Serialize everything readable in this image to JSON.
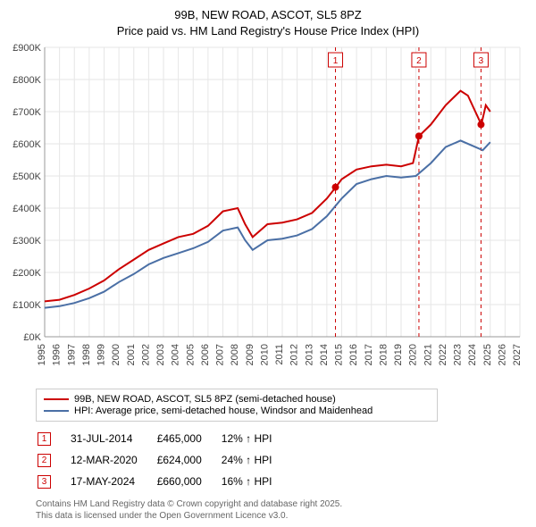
{
  "title_line1": "99B, NEW ROAD, ASCOT, SL5 8PZ",
  "title_line2": "Price paid vs. HM Land Registry's House Price Index (HPI)",
  "chart": {
    "type": "line",
    "background_color": "#ffffff",
    "grid_color": "#e6e6e6",
    "axis_color": "#999999",
    "x_years": [
      1995,
      1996,
      1997,
      1998,
      1999,
      2000,
      2001,
      2002,
      2003,
      2004,
      2005,
      2006,
      2007,
      2008,
      2009,
      2010,
      2011,
      2012,
      2013,
      2014,
      2015,
      2016,
      2017,
      2018,
      2019,
      2020,
      2021,
      2022,
      2023,
      2024,
      2025,
      2026,
      2027
    ],
    "y_ticks": [
      0,
      100,
      200,
      300,
      400,
      500,
      600,
      700,
      800,
      900
    ],
    "y_suffix": "K",
    "y_prefix": "£",
    "ylim": [
      0,
      900
    ],
    "xlim": [
      1995,
      2027
    ],
    "series": [
      {
        "name": "price_paid",
        "color": "#cc0000",
        "width": 2,
        "points": [
          [
            1995,
            110
          ],
          [
            1996,
            115
          ],
          [
            1997,
            130
          ],
          [
            1998,
            150
          ],
          [
            1999,
            175
          ],
          [
            2000,
            210
          ],
          [
            2001,
            240
          ],
          [
            2002,
            270
          ],
          [
            2003,
            290
          ],
          [
            2004,
            310
          ],
          [
            2005,
            320
          ],
          [
            2006,
            345
          ],
          [
            2007,
            390
          ],
          [
            2008,
            400
          ],
          [
            2008.5,
            350
          ],
          [
            2009,
            310
          ],
          [
            2010,
            350
          ],
          [
            2011,
            355
          ],
          [
            2012,
            365
          ],
          [
            2013,
            385
          ],
          [
            2014,
            430
          ],
          [
            2014.6,
            465
          ],
          [
            2015,
            490
          ],
          [
            2016,
            520
          ],
          [
            2017,
            530
          ],
          [
            2018,
            535
          ],
          [
            2019,
            530
          ],
          [
            2019.8,
            540
          ],
          [
            2020.2,
            624
          ],
          [
            2021,
            660
          ],
          [
            2022,
            720
          ],
          [
            2023,
            765
          ],
          [
            2023.5,
            750
          ],
          [
            2024,
            700
          ],
          [
            2024.4,
            660
          ],
          [
            2024.7,
            720
          ],
          [
            2025,
            700
          ]
        ]
      },
      {
        "name": "hpi",
        "color": "#4a6fa5",
        "width": 2,
        "points": [
          [
            1995,
            90
          ],
          [
            1996,
            95
          ],
          [
            1997,
            105
          ],
          [
            1998,
            120
          ],
          [
            1999,
            140
          ],
          [
            2000,
            170
          ],
          [
            2001,
            195
          ],
          [
            2002,
            225
          ],
          [
            2003,
            245
          ],
          [
            2004,
            260
          ],
          [
            2005,
            275
          ],
          [
            2006,
            295
          ],
          [
            2007,
            330
          ],
          [
            2008,
            340
          ],
          [
            2008.5,
            300
          ],
          [
            2009,
            270
          ],
          [
            2010,
            300
          ],
          [
            2011,
            305
          ],
          [
            2012,
            315
          ],
          [
            2013,
            335
          ],
          [
            2014,
            375
          ],
          [
            2015,
            430
          ],
          [
            2016,
            475
          ],
          [
            2017,
            490
          ],
          [
            2018,
            500
          ],
          [
            2019,
            495
          ],
          [
            2020,
            500
          ],
          [
            2021,
            540
          ],
          [
            2022,
            590
          ],
          [
            2023,
            610
          ],
          [
            2024,
            590
          ],
          [
            2024.5,
            580
          ],
          [
            2025,
            605
          ]
        ]
      }
    ],
    "markers": [
      {
        "n": "1",
        "year": 2014.58,
        "box_color": "#cc0000"
      },
      {
        "n": "2",
        "year": 2020.2,
        "box_color": "#cc0000"
      },
      {
        "n": "3",
        "year": 2024.38,
        "box_color": "#cc0000"
      }
    ],
    "dots": [
      {
        "year": 2014.58,
        "value": 465,
        "color": "#cc0000"
      },
      {
        "year": 2020.2,
        "value": 624,
        "color": "#cc0000"
      },
      {
        "year": 2024.38,
        "value": 660,
        "color": "#cc0000"
      }
    ],
    "label_fontsize": 11
  },
  "legend": [
    {
      "color": "#cc0000",
      "label": "99B, NEW ROAD, ASCOT, SL5 8PZ (semi-detached house)"
    },
    {
      "color": "#4a6fa5",
      "label": "HPI: Average price, semi-detached house, Windsor and Maidenhead"
    }
  ],
  "transactions": [
    {
      "n": "1",
      "box_color": "#cc0000",
      "date": "31-JUL-2014",
      "price": "£465,000",
      "pct": "12% ↑ HPI"
    },
    {
      "n": "2",
      "box_color": "#cc0000",
      "date": "12-MAR-2020",
      "price": "£624,000",
      "pct": "24% ↑ HPI"
    },
    {
      "n": "3",
      "box_color": "#cc0000",
      "date": "17-MAY-2024",
      "price": "£660,000",
      "pct": "16% ↑ HPI"
    }
  ],
  "footer_line1": "Contains HM Land Registry data © Crown copyright and database right 2025.",
  "footer_line2": "This data is licensed under the Open Government Licence v3.0."
}
